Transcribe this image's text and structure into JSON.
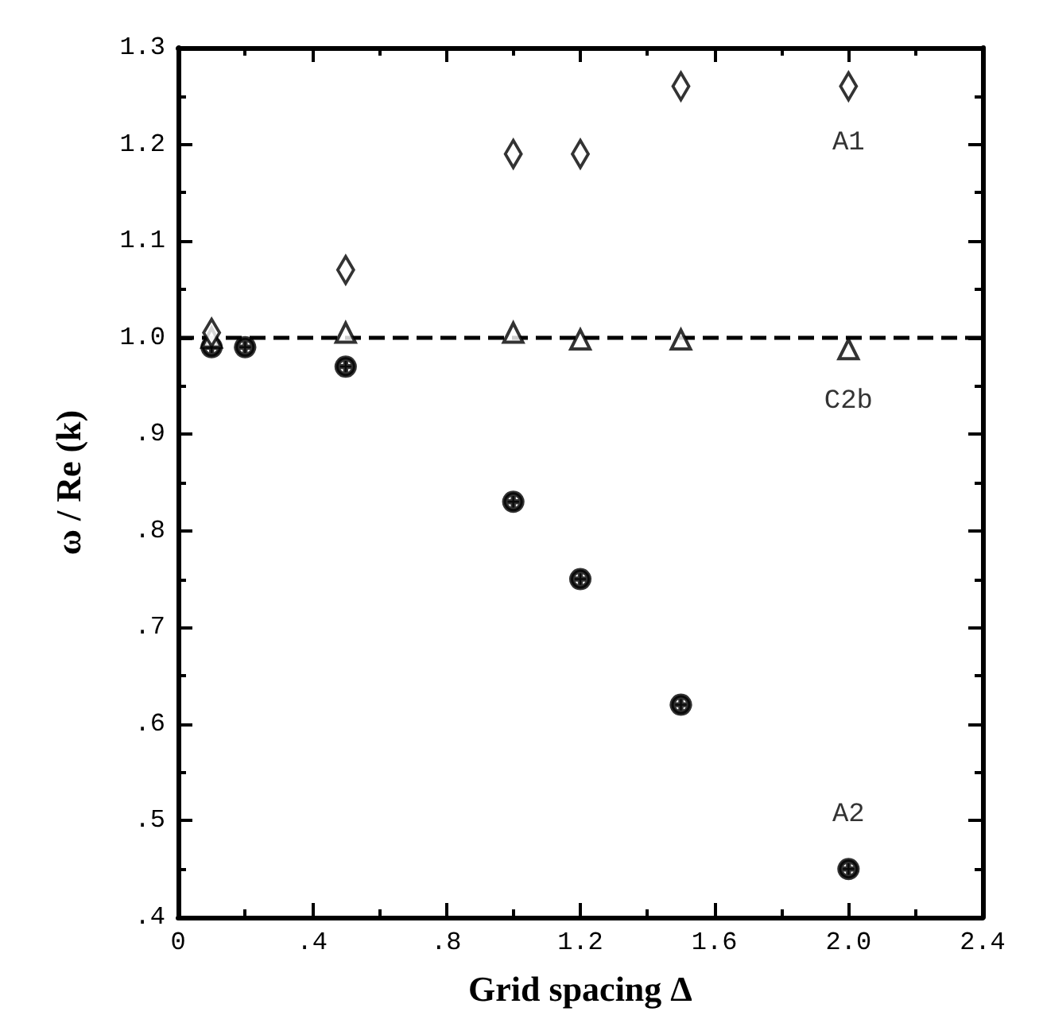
{
  "chart_data": {
    "type": "scatter",
    "xlabel": "Grid spacing Δ",
    "ylabel": "ω / Re (k)",
    "xlim": [
      0,
      2.4
    ],
    "xticks": [
      0,
      {
        "value": 0.4,
        "label": ".4"
      },
      {
        "value": 0.8,
        "label": ".8"
      },
      1.2,
      1.6,
      {
        "value": 2.0,
        "label": "2.0"
      },
      2.4
    ],
    "ylim": [
      0.4,
      1.3
    ],
    "yticks": [
      {
        "value": 0.4,
        "label": ".4"
      },
      {
        "value": 0.5,
        "label": ".5"
      },
      {
        "value": 0.6,
        "label": ".6"
      },
      {
        "value": 0.7,
        "label": ".7"
      },
      {
        "value": 0.8,
        "label": ".8"
      },
      {
        "value": 0.9,
        "label": ".9"
      },
      {
        "value": 1.0,
        "label": "1.0"
      },
      1.1,
      1.2,
      1.3
    ],
    "grid": false,
    "legend": false,
    "ref_lines": [
      {
        "axis": "y",
        "value": 1.0,
        "line_style": "dashed",
        "color": "#000000"
      }
    ],
    "series": [
      {
        "name": "A1",
        "color": "#000000",
        "marker": "diamond",
        "x": [
          0.1,
          0.5,
          1.0,
          1.2,
          1.5,
          2.0
        ],
        "values": [
          1.005,
          1.07,
          1.19,
          1.19,
          1.26,
          1.26
        ]
      },
      {
        "name": "C2b",
        "color": "#000000",
        "marker": "triangle",
        "x": [
          0.1,
          0.5,
          1.0,
          1.2,
          1.5,
          2.0
        ],
        "values": [
          1.0,
          1.005,
          1.005,
          0.998,
          0.998,
          0.988
        ]
      },
      {
        "name": "A2",
        "color": "#000000",
        "marker": "circle",
        "x": [
          0.1,
          0.2,
          0.5,
          1.0,
          1.2,
          1.5,
          2.0
        ],
        "values": [
          0.99,
          0.99,
          0.97,
          0.83,
          0.75,
          0.62,
          0.45
        ]
      }
    ]
  }
}
